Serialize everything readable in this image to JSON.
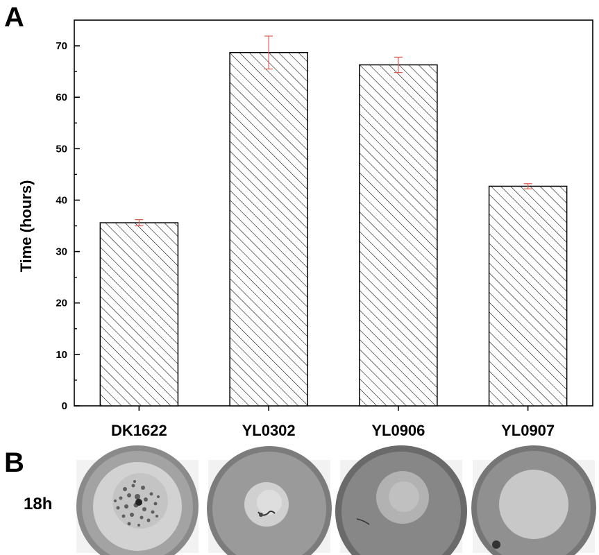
{
  "panels": {
    "a_label": "A",
    "b_label": "B"
  },
  "chart_data": {
    "type": "bar",
    "title": "",
    "xlabel": "",
    "ylabel": "Time (hours)",
    "ylim": [
      0,
      75
    ],
    "yticks": [
      0,
      10,
      20,
      30,
      40,
      50,
      60,
      70
    ],
    "categories": [
      "DK1622",
      "YL0302",
      "YL0906",
      "YL0907"
    ],
    "values": [
      35.6,
      68.7,
      66.3,
      42.7
    ],
    "errors": [
      0.6,
      3.2,
      1.5,
      0.5
    ],
    "bar_fill": "diagonal-hatch",
    "bar_color": "#000000",
    "error_bar_color": "#e05a4e",
    "grid": false,
    "legend": "none"
  },
  "panel_b": {
    "row_label": "18h",
    "colony_images": [
      {
        "strain": "DK1622",
        "description": "colony with many dark dots"
      },
      {
        "strain": "YL0302",
        "description": "small central colony"
      },
      {
        "strain": "YL0906",
        "description": "dark plate, faint colony"
      },
      {
        "strain": "YL0907",
        "description": "large pale colony"
      }
    ]
  }
}
